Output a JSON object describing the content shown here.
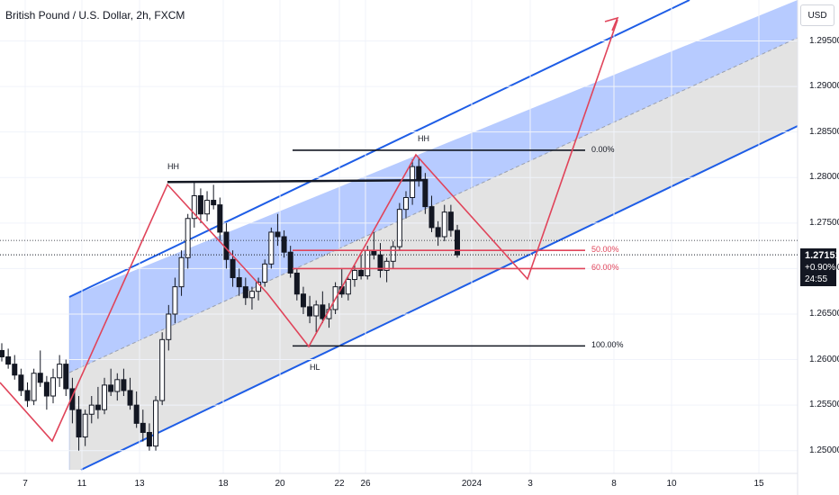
{
  "header": {
    "title": "British Pound / U.S. Dollar, 2h, FXCM",
    "currency": "USD"
  },
  "price_tag": {
    "price": "1.27151",
    "change": "+0.90%",
    "countdown": "24:55"
  },
  "colors": {
    "up_candle": "#131722",
    "down_candle": "#131722",
    "channel_upper_fill": "#b7cbff",
    "channel_lower_fill": "#e3e3e3",
    "channel_line": "#1e5de6",
    "zigzag": "#e0445a",
    "fib_red": "#e0445a",
    "fib_black": "#131722"
  },
  "chart_data": {
    "type": "candlestick",
    "title": "British Pound / U.S. Dollar, 2h, FXCM",
    "y_axis": {
      "ticks": [
        "1.29500",
        "1.29000",
        "1.28500",
        "1.28000",
        "1.27500",
        "1.27000",
        "1.26500",
        "1.26000",
        "1.25500",
        "1.25000"
      ],
      "range": [
        1.2475,
        1.2995
      ]
    },
    "x_axis": {
      "ticks": [
        "7",
        "11",
        "13",
        "18",
        "20",
        "22",
        "26",
        "2024",
        "3",
        "8",
        "10",
        "15"
      ]
    },
    "annotations": [
      {
        "text": "HH",
        "near": "first swing high"
      },
      {
        "text": "HH",
        "near": "second swing high"
      },
      {
        "text": "HL",
        "near": "swing low"
      }
    ],
    "fib_levels": [
      {
        "label": "0.00%",
        "price": 1.283
      },
      {
        "label": "50.00%",
        "price": 1.272
      },
      {
        "label": "60.00%",
        "price": 1.27
      },
      {
        "label": "100.00%",
        "price": 1.2615
      }
    ],
    "resistance_line": [
      1.2795,
      1.2795
    ],
    "current_price": 1.27151,
    "ohlc": [
      [
        1.261,
        1.2618,
        1.2598,
        1.2603
      ],
      [
        1.2603,
        1.2612,
        1.259,
        1.2595
      ],
      [
        1.2595,
        1.2605,
        1.2578,
        1.2583
      ],
      [
        1.2583,
        1.259,
        1.256,
        1.2566
      ],
      [
        1.2566,
        1.2575,
        1.2548,
        1.2555
      ],
      [
        1.2555,
        1.259,
        1.255,
        1.2585
      ],
      [
        1.2585,
        1.261,
        1.257,
        1.2575
      ],
      [
        1.2575,
        1.2582,
        1.2545,
        1.256
      ],
      [
        1.256,
        1.259,
        1.2552,
        1.258
      ],
      [
        1.258,
        1.2605,
        1.257,
        1.2595
      ],
      [
        1.2595,
        1.26,
        1.256,
        1.2568
      ],
      [
        1.2568,
        1.258,
        1.253,
        1.2545
      ],
      [
        1.2545,
        1.256,
        1.25,
        1.2515
      ],
      [
        1.2515,
        1.2545,
        1.2505,
        1.254
      ],
      [
        1.254,
        1.256,
        1.253,
        1.255
      ],
      [
        1.255,
        1.257,
        1.2535,
        1.2545
      ],
      [
        1.2545,
        1.258,
        1.254,
        1.2572
      ],
      [
        1.2572,
        1.259,
        1.256,
        1.2565
      ],
      [
        1.2565,
        1.2585,
        1.2555,
        1.2578
      ],
      [
        1.2578,
        1.259,
        1.256,
        1.2566
      ],
      [
        1.2566,
        1.258,
        1.2545,
        1.255
      ],
      [
        1.255,
        1.2565,
        1.2525,
        1.253
      ],
      [
        1.253,
        1.2545,
        1.251,
        1.252
      ],
      [
        1.252,
        1.253,
        1.25,
        1.2505
      ],
      [
        1.2505,
        1.256,
        1.25,
        1.2555
      ],
      [
        1.2555,
        1.263,
        1.255,
        1.2622
      ],
      [
        1.2622,
        1.266,
        1.261,
        1.265
      ],
      [
        1.265,
        1.269,
        1.264,
        1.268
      ],
      [
        1.268,
        1.272,
        1.267,
        1.2712
      ],
      [
        1.2712,
        1.276,
        1.27,
        1.2755
      ],
      [
        1.2755,
        1.2795,
        1.2745,
        1.278
      ],
      [
        1.278,
        1.2788,
        1.275,
        1.276
      ],
      [
        1.276,
        1.2785,
        1.2752,
        1.2775
      ],
      [
        1.2775,
        1.2792,
        1.2765,
        1.277
      ],
      [
        1.277,
        1.2778,
        1.273,
        1.274
      ],
      [
        1.274,
        1.275,
        1.27,
        1.271
      ],
      [
        1.271,
        1.272,
        1.268,
        1.269
      ],
      [
        1.269,
        1.27,
        1.267,
        1.268
      ],
      [
        1.268,
        1.269,
        1.266,
        1.2668
      ],
      [
        1.2668,
        1.268,
        1.2655,
        1.2675
      ],
      [
        1.2675,
        1.269,
        1.2665,
        1.2685
      ],
      [
        1.2685,
        1.271,
        1.268,
        1.2705
      ],
      [
        1.2705,
        1.2745,
        1.27,
        1.274
      ],
      [
        1.274,
        1.276,
        1.2725,
        1.2735
      ],
      [
        1.2735,
        1.2742,
        1.2712,
        1.2718
      ],
      [
        1.2718,
        1.2725,
        1.269,
        1.2695
      ],
      [
        1.2695,
        1.27,
        1.2665,
        1.2672
      ],
      [
        1.2672,
        1.268,
        1.265,
        1.2658
      ],
      [
        1.2658,
        1.267,
        1.264,
        1.2648
      ],
      [
        1.2648,
        1.2665,
        1.263,
        1.266
      ],
      [
        1.266,
        1.2675,
        1.264,
        1.2645
      ],
      [
        1.2645,
        1.2662,
        1.2635,
        1.2655
      ],
      [
        1.2655,
        1.2685,
        1.265,
        1.268
      ],
      [
        1.268,
        1.27,
        1.2668,
        1.2672
      ],
      [
        1.2672,
        1.269,
        1.2665,
        1.2688
      ],
      [
        1.2688,
        1.2705,
        1.268,
        1.2698
      ],
      [
        1.2698,
        1.2715,
        1.2688,
        1.2692
      ],
      [
        1.2692,
        1.2725,
        1.2688,
        1.272
      ],
      [
        1.272,
        1.274,
        1.271,
        1.2715
      ],
      [
        1.2715,
        1.2728,
        1.269,
        1.2698
      ],
      [
        1.2698,
        1.2712,
        1.2685,
        1.2708
      ],
      [
        1.2708,
        1.273,
        1.27,
        1.2724
      ],
      [
        1.2724,
        1.2772,
        1.272,
        1.2765
      ],
      [
        1.2765,
        1.2785,
        1.2755,
        1.2778
      ],
      [
        1.2778,
        1.282,
        1.277,
        1.2812
      ],
      [
        1.2812,
        1.2822,
        1.279,
        1.2798
      ],
      [
        1.2798,
        1.2805,
        1.276,
        1.2768
      ],
      [
        1.2768,
        1.278,
        1.274,
        1.2745
      ],
      [
        1.2745,
        1.2752,
        1.2725,
        1.2735
      ],
      [
        1.2735,
        1.277,
        1.273,
        1.2762
      ],
      [
        1.2762,
        1.277,
        1.2735,
        1.2742
      ],
      [
        1.2742,
        1.2748,
        1.2712,
        1.2715
      ]
    ]
  }
}
